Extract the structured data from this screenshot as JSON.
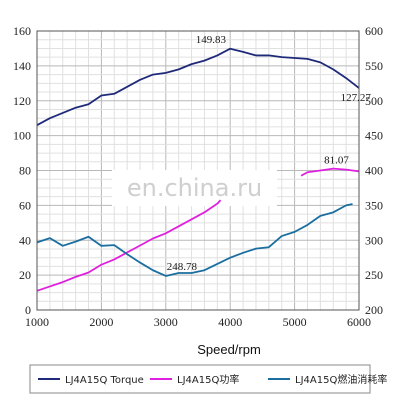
{
  "chart_data": {
    "type": "line",
    "xlabel": "Speed/rpm",
    "x_ticks": [
      1000,
      2000,
      3000,
      4000,
      5000,
      6000
    ],
    "y_left_ticks": [
      0,
      20,
      40,
      60,
      80,
      100,
      120,
      140,
      160
    ],
    "y_right_ticks": [
      200,
      250,
      300,
      350,
      400,
      450,
      500,
      550,
      600
    ],
    "xlim": [
      1000,
      6000
    ],
    "ylim_left": [
      0,
      160
    ],
    "ylim_right": [
      200,
      600
    ],
    "grid": true,
    "legend_position": "bottom",
    "series": [
      {
        "name": "LJ4A15Q Torque",
        "color": "#1f2a7a",
        "axis": "left",
        "x": [
          1000,
          1200,
          1400,
          1600,
          1800,
          2000,
          2200,
          2400,
          2600,
          2800,
          3000,
          3200,
          3400,
          3600,
          3800,
          4000,
          4200,
          4400,
          4600,
          4800,
          5000,
          5200,
          5400,
          5600,
          5800,
          6000
        ],
        "y": [
          106,
          110,
          113,
          116,
          118,
          123,
          124,
          128,
          132,
          135,
          136,
          138,
          141,
          143,
          146,
          149.83,
          148,
          146,
          146,
          145,
          144.5,
          144,
          142,
          138,
          133,
          127.27
        ]
      },
      {
        "name": "LJ4A15Q功率",
        "color": "#e020e0",
        "axis": "left",
        "x": [
          1000,
          1200,
          1400,
          1600,
          1800,
          2000,
          2200,
          2400,
          2600,
          2800,
          3000,
          3200,
          3400,
          3600,
          3800,
          3850,
          5100,
          5200,
          5400,
          5600,
          5800,
          6000
        ],
        "y": [
          11,
          13.5,
          16,
          19,
          21.5,
          26,
          29,
          33,
          37,
          41,
          44,
          48,
          52,
          56,
          61,
          63,
          77,
          79,
          80,
          81.07,
          80.5,
          79.5
        ]
      },
      {
        "name": "LJ4A15Q燃油消耗率",
        "color": "#1a6ea0",
        "axis": "right",
        "x": [
          1000,
          1200,
          1400,
          1600,
          1800,
          2000,
          2200,
          2400,
          2600,
          2800,
          3000,
          3200,
          3400,
          3600,
          3800,
          4000,
          4200,
          4400,
          4600,
          4800,
          5000,
          5200,
          5400,
          5600,
          5800,
          5900
        ],
        "y": [
          297,
          303,
          292,
          298,
          305,
          292,
          293,
          280,
          268,
          257,
          248.78,
          253,
          253,
          257,
          266,
          275,
          282,
          288,
          290,
          306,
          312,
          322,
          335,
          340,
          350,
          352
        ]
      }
    ],
    "annotations": [
      {
        "text": "149.83",
        "x": 3700,
        "y": 153
      },
      {
        "text": "127.27",
        "x": 5950,
        "y": 120
      },
      {
        "text": "81.07",
        "x": 5650,
        "y": 84
      },
      {
        "text": "248.78",
        "x": 3250,
        "y": 23
      }
    ],
    "watermark": "en.china.ru"
  }
}
